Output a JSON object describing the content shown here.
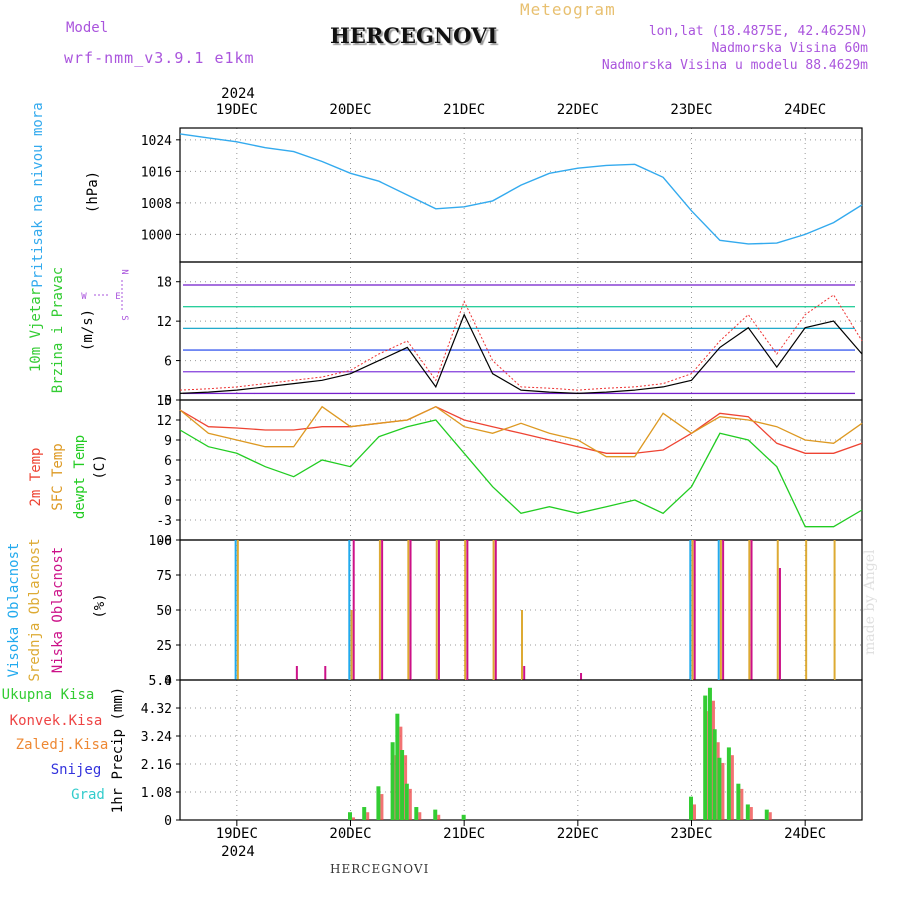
{
  "header": {
    "model_label": "Model",
    "model_name": "wrf-nmm_v3.9.1 e1km",
    "title": "HERCEGNOVI",
    "meteogram_label": "Meteogram",
    "lonlat": "lon,lat (18.4875E, 42.4625N)",
    "elevation": "Nadmorska Visina 60m",
    "model_elevation": "Nadmorska Visina u modelu 88.4629m"
  },
  "footer": {
    "station": "HERCEGNOVI",
    "watermark": "made by Angel"
  },
  "colors": {
    "pressure": "#33aaee",
    "temp2m": "#ee4433",
    "sfc": "#dd9922",
    "dew": "#22cc22",
    "high_cloud": "#22aaee",
    "mid_cloud": "#ddaa33",
    "low_cloud": "#cc1188",
    "total_precip": "#33cc33",
    "conv_precip": "#ee4444",
    "strat_precip": "#ee8833",
    "snow": "#3333dd",
    "grad": "#33cccc",
    "model_label": "#aa55dd"
  },
  "chart_data": [
    {
      "type": "line",
      "panel": "pressure",
      "ylabel": [
        "Pritisak na nivou mora",
        "(hPa)"
      ],
      "ylim": [
        993,
        1027
      ],
      "yticks": [
        1000,
        1008,
        1016,
        1024
      ],
      "x_dates": [
        "2024-12-18 12:00",
        "2024-12-18 18:00",
        "2024-12-19 00:00",
        "2024-12-19 06:00",
        "2024-12-19 12:00",
        "2024-12-19 18:00",
        "2024-12-20 00:00",
        "2024-12-20 06:00",
        "2024-12-20 12:00",
        "2024-12-20 18:00",
        "2024-12-21 00:00",
        "2024-12-21 06:00",
        "2024-12-21 12:00",
        "2024-12-21 18:00",
        "2024-12-22 00:00",
        "2024-12-22 06:00",
        "2024-12-22 12:00",
        "2024-12-22 18:00",
        "2024-12-23 00:00",
        "2024-12-23 06:00",
        "2024-12-23 12:00",
        "2024-12-23 18:00",
        "2024-12-24 00:00",
        "2024-12-24 06:00",
        "2024-12-24 12:00"
      ],
      "series": [
        {
          "values": [
            1025.5,
            1024.5,
            1023.5,
            1022,
            1021,
            1018.5,
            1015.5,
            1013.5,
            1010,
            1006.5,
            1007,
            1008.5,
            1012.5,
            1015.5,
            1016.8,
            1017.5,
            1017.8,
            1014.5,
            1006,
            998.5,
            997.6,
            997.8,
            1000,
            1003,
            1007.5
          ]
        }
      ]
    },
    {
      "type": "line",
      "panel": "wind",
      "ylabel": [
        "10m Vjetar",
        "Brzina i Pravac",
        "(m/s)"
      ],
      "compass": {
        "north": "N",
        "south": "S",
        "west": "W",
        "east": "E"
      },
      "ylim": [
        0,
        21
      ],
      "yticks": [
        0,
        6,
        12,
        18
      ],
      "x_dates": [
        "2024-12-18 12:00",
        "2024-12-18 18:00",
        "2024-12-19 00:00",
        "2024-12-19 06:00",
        "2024-12-19 12:00",
        "2024-12-19 18:00",
        "2024-12-20 00:00",
        "2024-12-20 06:00",
        "2024-12-20 12:00",
        "2024-12-20 18:00",
        "2024-12-21 00:00",
        "2024-12-21 06:00",
        "2024-12-21 12:00",
        "2024-12-21 18:00",
        "2024-12-22 00:00",
        "2024-12-22 06:00",
        "2024-12-22 12:00",
        "2024-12-22 18:00",
        "2024-12-23 00:00",
        "2024-12-23 06:00",
        "2024-12-23 12:00",
        "2024-12-23 18:00",
        "2024-12-24 00:00",
        "2024-12-24 06:00",
        "2024-12-24 12:00"
      ],
      "series": [
        {
          "values": [
            1,
            1.2,
            1.5,
            2,
            2.5,
            3,
            4,
            6,
            8,
            2,
            13,
            4,
            1.5,
            1.2,
            1,
            1.2,
            1.5,
            2,
            3,
            8,
            11,
            5,
            11,
            12,
            7
          ]
        },
        {
          "values": [
            1.5,
            1.7,
            2,
            2.5,
            3,
            3.5,
            4.5,
            7,
            9,
            3,
            15,
            6,
            2,
            1.8,
            1.5,
            1.8,
            2,
            2.5,
            4,
            9,
            13,
            7,
            13,
            16,
            9
          ]
        }
      ]
    },
    {
      "type": "line",
      "panel": "temperature",
      "ylabel": [
        "2m Temp",
        "SFC Temp",
        "dewpt Temp",
        "(C)"
      ],
      "ylim": [
        -6,
        15
      ],
      "yticks": [
        -6,
        -3,
        0,
        3,
        6,
        9,
        12,
        15
      ],
      "x_dates": [
        "2024-12-18 12:00",
        "2024-12-18 18:00",
        "2024-12-19 00:00",
        "2024-12-19 06:00",
        "2024-12-19 12:00",
        "2024-12-19 18:00",
        "2024-12-20 00:00",
        "2024-12-20 06:00",
        "2024-12-20 12:00",
        "2024-12-20 18:00",
        "2024-12-21 00:00",
        "2024-12-21 06:00",
        "2024-12-21 12:00",
        "2024-12-21 18:00",
        "2024-12-22 00:00",
        "2024-12-22 06:00",
        "2024-12-22 12:00",
        "2024-12-22 18:00",
        "2024-12-23 00:00",
        "2024-12-23 06:00",
        "2024-12-23 12:00",
        "2024-12-23 18:00",
        "2024-12-24 00:00",
        "2024-12-24 06:00",
        "2024-12-24 12:00"
      ],
      "series": [
        {
          "name": "2m Temp",
          "values": [
            13.5,
            11,
            10.8,
            10.5,
            10.5,
            11,
            11,
            11.5,
            12,
            14,
            12,
            11,
            10,
            9,
            8,
            7,
            7,
            7.5,
            10,
            13,
            12.5,
            8.5,
            7,
            7,
            8.5
          ]
        },
        {
          "name": "SFC Temp",
          "values": [
            13.5,
            10,
            9,
            8,
            8,
            14,
            11,
            11.5,
            12,
            14,
            11,
            10,
            11.5,
            10,
            9,
            6.5,
            6.5,
            13,
            10,
            12.5,
            12,
            11,
            9,
            8.5,
            11.5
          ]
        },
        {
          "name": "dewpt Temp",
          "values": [
            10.5,
            8,
            7,
            5,
            3.5,
            6,
            5,
            9.5,
            11,
            12,
            7,
            2,
            -2,
            -1,
            -2,
            -1,
            0,
            -2,
            2,
            10,
            9,
            5,
            -4,
            -4,
            -1.5
          ]
        }
      ]
    },
    {
      "type": "bar",
      "panel": "clouds",
      "ylabel": [
        "Visoka Oblacnost",
        "Srednja Oblacnost",
        "Niska Oblacnost",
        "(%)"
      ],
      "ylim": [
        0,
        100
      ],
      "yticks": [
        0,
        25,
        50,
        75,
        100
      ],
      "x_dates": [
        "2024-12-18 12:00",
        "2024-12-18 18:00",
        "2024-12-19 00:00",
        "2024-12-19 06:00",
        "2024-12-19 12:00",
        "2024-12-19 18:00",
        "2024-12-20 00:00",
        "2024-12-20 06:00",
        "2024-12-20 12:00",
        "2024-12-20 18:00",
        "2024-12-21 00:00",
        "2024-12-21 06:00",
        "2024-12-21 12:00",
        "2024-12-21 18:00",
        "2024-12-22 00:00",
        "2024-12-22 06:00",
        "2024-12-22 12:00",
        "2024-12-22 18:00",
        "2024-12-23 00:00",
        "2024-12-23 06:00",
        "2024-12-23 12:00",
        "2024-12-23 18:00",
        "2024-12-24 00:00",
        "2024-12-24 06:00",
        "2024-12-24 12:00"
      ],
      "series": [
        {
          "name": "Visoka Oblacnost",
          "values": [
            0,
            0,
            100,
            0,
            0,
            0,
            100,
            0,
            0,
            0,
            0,
            0,
            0,
            0,
            0,
            0,
            0,
            0,
            100,
            100,
            0,
            0,
            0,
            0,
            0
          ]
        },
        {
          "name": "Srednja Oblacnost",
          "values": [
            0,
            0,
            100,
            0,
            0,
            0,
            50,
            100,
            100,
            100,
            100,
            100,
            50,
            0,
            0,
            0,
            0,
            0,
            100,
            100,
            100,
            100,
            100,
            100,
            0
          ]
        },
        {
          "name": "Niska Oblacnost",
          "values": [
            0,
            0,
            0,
            0,
            10,
            10,
            100,
            100,
            100,
            100,
            100,
            100,
            10,
            0,
            5,
            0,
            0,
            0,
            100,
            100,
            100,
            80,
            0,
            0,
            0
          ]
        }
      ]
    },
    {
      "type": "bar",
      "panel": "precipitation",
      "ylabel": [
        "1hr Precip (mm)"
      ],
      "legend": [
        "Ukupna Kisa",
        "Konvek.Kisa",
        "Zaledj.Kisa",
        "Snijeg",
        "Grad"
      ],
      "ylim": [
        0,
        5.4
      ],
      "yticks": [
        0,
        1.08,
        2.16,
        3.24,
        4.32,
        5.4
      ],
      "x_dates": [
        "2024-12-20 00:00",
        "2024-12-20 03:00",
        "2024-12-20 06:00",
        "2024-12-20 09:00",
        "2024-12-20 10:00",
        "2024-12-20 11:00",
        "2024-12-20 12:00",
        "2024-12-20 14:00",
        "2024-12-20 18:00",
        "2024-12-21 00:00",
        "2024-12-23 00:00",
        "2024-12-23 03:00",
        "2024-12-23 04:00",
        "2024-12-23 05:00",
        "2024-12-23 06:00",
        "2024-12-23 08:00",
        "2024-12-23 10:00",
        "2024-12-23 12:00",
        "2024-12-23 16:00"
      ],
      "series": [
        {
          "name": "Ukupna Kisa",
          "values": [
            0.3,
            0.5,
            1.3,
            3,
            4.1,
            2.7,
            1.4,
            0.5,
            0.4,
            0.2,
            0.9,
            4.8,
            5.1,
            3.5,
            2.4,
            2.8,
            1.4,
            0.6,
            0.4
          ]
        },
        {
          "name": "Konvek.Kisa",
          "values": [
            0.1,
            0.3,
            1,
            2.5,
            3.6,
            2.5,
            1.2,
            0.3,
            0.2,
            0,
            0.6,
            4.2,
            4.6,
            3,
            2.2,
            2.5,
            1.2,
            0.5,
            0.3
          ]
        }
      ]
    }
  ],
  "time_axis": {
    "year": "2024",
    "day_labels": [
      "19DEC",
      "20DEC",
      "21DEC",
      "22DEC",
      "23DEC",
      "24DEC"
    ],
    "day_dates": [
      "2024-12-19",
      "2024-12-20",
      "2024-12-21",
      "2024-12-22",
      "2024-12-23",
      "2024-12-24"
    ]
  }
}
